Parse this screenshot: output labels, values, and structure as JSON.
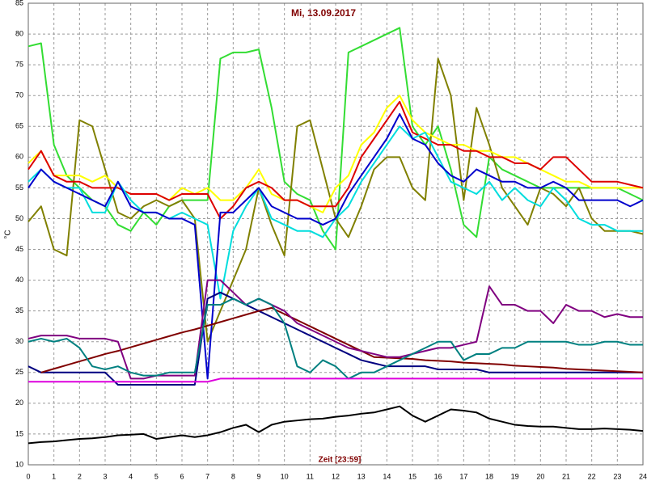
{
  "chart_data": {
    "type": "line",
    "title": "Mi, 13.09.2017",
    "x_label": "Zeit [23:59]",
    "y_label": "°C",
    "x": [
      0,
      0.5,
      1,
      1.5,
      2,
      2.5,
      3,
      3.5,
      4,
      4.5,
      5,
      5.5,
      6,
      6.5,
      7,
      7.5,
      8,
      8.5,
      9,
      9.5,
      10,
      10.5,
      11,
      11.5,
      12,
      12.5,
      13,
      13.5,
      14,
      14.5,
      15,
      15.5,
      16,
      16.5,
      17,
      17.5,
      18,
      18.5,
      19,
      19.5,
      20,
      20.5,
      21,
      21.5,
      22,
      22.5,
      23,
      23.5,
      24
    ],
    "xlim": [
      0,
      24
    ],
    "xticks": [
      0,
      1,
      2,
      3,
      4,
      5,
      6,
      7,
      8,
      9,
      10,
      11,
      12,
      13,
      14,
      15,
      16,
      17,
      18,
      19,
      20,
      21,
      22,
      23,
      24
    ],
    "ylim": [
      10,
      85
    ],
    "yticks": [
      10,
      15,
      20,
      25,
      30,
      35,
      40,
      45,
      50,
      55,
      60,
      65,
      70,
      75,
      80,
      85
    ],
    "grid": true,
    "series": [
      {
        "color": "#33dd33",
        "values": [
          78,
          78.5,
          62,
          57,
          55,
          53,
          52,
          49,
          48,
          51,
          49,
          52,
          53,
          53,
          53,
          76,
          77,
          77,
          77.5,
          68,
          56,
          54,
          53,
          48,
          45,
          77,
          78,
          79,
          80,
          81,
          65,
          62,
          65,
          58,
          49,
          47,
          60,
          58,
          57,
          56,
          55,
          55,
          55,
          55,
          55,
          55,
          55,
          54,
          53
        ]
      },
      {
        "color": "#808000",
        "values": [
          49.5,
          52,
          45,
          44,
          66,
          65,
          58,
          51,
          50,
          52,
          53,
          52,
          53,
          50,
          30,
          35,
          40,
          45,
          55,
          49,
          44,
          65,
          66,
          58,
          50,
          47,
          52,
          58,
          60,
          60,
          55,
          53,
          76,
          70,
          53,
          68,
          62,
          55,
          52,
          49,
          55,
          54,
          52,
          55,
          50,
          48,
          48,
          48,
          47.5
        ]
      },
      {
        "color": "#ffff00",
        "values": [
          59,
          61,
          57,
          57,
          57,
          56,
          57,
          55,
          54,
          54,
          54,
          53,
          55,
          54,
          55,
          53,
          53,
          55,
          58,
          54,
          53,
          53,
          52,
          51,
          55,
          57,
          62,
          64,
          68,
          70,
          66,
          64,
          63,
          62,
          62,
          61,
          61,
          60,
          60,
          59,
          58,
          57,
          56,
          56,
          55,
          55,
          55,
          55,
          55
        ]
      },
      {
        "color": "#dd0000",
        "values": [
          58,
          61,
          57,
          56,
          56,
          55,
          55,
          55,
          54,
          54,
          54,
          53,
          54,
          54,
          54,
          50,
          52,
          55,
          56,
          55,
          53,
          53,
          52,
          52,
          52,
          55,
          60,
          63,
          66,
          69,
          64,
          63,
          62,
          62,
          61,
          61,
          60,
          60,
          59,
          59,
          58,
          60,
          60,
          58,
          56,
          56,
          56,
          55.5,
          55
        ]
      },
      {
        "color": "#00dddd",
        "values": [
          56,
          58,
          56,
          55,
          55,
          51,
          51,
          56,
          53,
          51,
          51,
          50,
          51,
          50,
          49,
          37,
          48,
          52,
          55,
          50,
          49,
          48,
          48,
          47,
          50,
          52,
          56,
          59,
          62,
          65,
          63,
          64,
          60,
          56,
          55,
          54,
          56,
          53,
          55,
          53,
          52,
          55,
          53,
          50,
          49,
          49,
          48,
          48,
          48
        ]
      },
      {
        "color": "#0000cc",
        "values": [
          55,
          58,
          56,
          55,
          54,
          53,
          52,
          56,
          52,
          51,
          51,
          50,
          50,
          49,
          24,
          51,
          51,
          53,
          55,
          52,
          51,
          50,
          50,
          49,
          50,
          54,
          57,
          60,
          63,
          67,
          63,
          62,
          59,
          57,
          56,
          58,
          57,
          56,
          56,
          55,
          55,
          56,
          55,
          53,
          53,
          53,
          53,
          52,
          53
        ]
      },
      {
        "color": "#000080",
        "values": [
          26,
          25,
          25,
          25,
          25,
          25,
          25,
          23,
          23,
          23,
          23,
          23,
          23,
          23,
          37,
          38,
          37,
          36,
          35,
          34,
          33,
          32,
          31,
          30,
          29,
          28,
          27,
          26.5,
          26,
          26,
          26,
          26,
          25.5,
          25.5,
          25.5,
          25.5,
          25,
          25,
          25,
          25,
          25,
          25,
          25,
          25,
          25,
          25,
          25,
          25,
          25
        ]
      },
      {
        "color": "#800000",
        "values": [
          null,
          25,
          25.6,
          26.2,
          26.8,
          27.4,
          28,
          28.5,
          29.1,
          29.7,
          30.3,
          30.9,
          31.5,
          32,
          32.6,
          33.2,
          33.8,
          34.4,
          35,
          35.5,
          34.5,
          33.5,
          32.5,
          31.5,
          30.5,
          29.5,
          28.5,
          27.5,
          27.4,
          27.3,
          27.2,
          27,
          26.9,
          26.8,
          26.6,
          26.5,
          26.4,
          26.3,
          26.1,
          26,
          25.9,
          25.8,
          25.6,
          25.5,
          25.4,
          25.3,
          25.2,
          25.1,
          25
        ]
      },
      {
        "color": "#800080",
        "values": [
          30.5,
          31,
          31,
          31,
          30.5,
          30.5,
          30.5,
          30,
          24,
          24,
          24.5,
          24.5,
          24.5,
          24.5,
          40,
          40,
          38,
          36,
          37,
          36,
          35,
          33,
          32,
          31,
          30,
          29,
          28.5,
          28,
          27.5,
          27.5,
          28,
          28.5,
          29,
          29,
          29.5,
          30,
          39,
          36,
          36,
          35,
          35,
          33,
          36,
          35,
          35,
          34,
          34.5,
          34,
          34
        ]
      },
      {
        "color": "#008080",
        "values": [
          30,
          30.5,
          30,
          30.5,
          29,
          26,
          25.5,
          26,
          25,
          24.5,
          24.5,
          25,
          25,
          25,
          36,
          36,
          37,
          36,
          37,
          36,
          33,
          26,
          25,
          27,
          26,
          24,
          25,
          25,
          26,
          27,
          28,
          29,
          30,
          30,
          27,
          28,
          28,
          29,
          29,
          30,
          30,
          30,
          30,
          29.5,
          29.5,
          30,
          30,
          29.5,
          29.5
        ]
      },
      {
        "color": "#dd00dd",
        "values": [
          23.5,
          23.5,
          23.5,
          23.5,
          23.5,
          23.5,
          23.5,
          23.5,
          23.5,
          23.5,
          23.5,
          23.5,
          23.5,
          23.5,
          23.5,
          24,
          24,
          24,
          24,
          24,
          24,
          24,
          24,
          24,
          24,
          24,
          24,
          24,
          24,
          24,
          24,
          24,
          24,
          24,
          24,
          24,
          24,
          24,
          24,
          24,
          24,
          24,
          24,
          24,
          24,
          24,
          24,
          24,
          24
        ]
      },
      {
        "color": "#000000",
        "values": [
          13.5,
          13.7,
          13.8,
          14,
          14.2,
          14.3,
          14.5,
          14.8,
          14.9,
          15,
          14.2,
          14.5,
          14.8,
          14.5,
          14.8,
          15.3,
          16,
          16.5,
          15.3,
          16.5,
          17,
          17.2,
          17.4,
          17.5,
          17.8,
          18,
          18.3,
          18.5,
          19,
          19.5,
          18,
          17,
          18,
          19,
          18.8,
          18.5,
          17.5,
          17,
          16.5,
          16.3,
          16.2,
          16.2,
          16,
          15.8,
          15.8,
          15.9,
          15.8,
          15.7,
          15.5
        ]
      }
    ]
  }
}
